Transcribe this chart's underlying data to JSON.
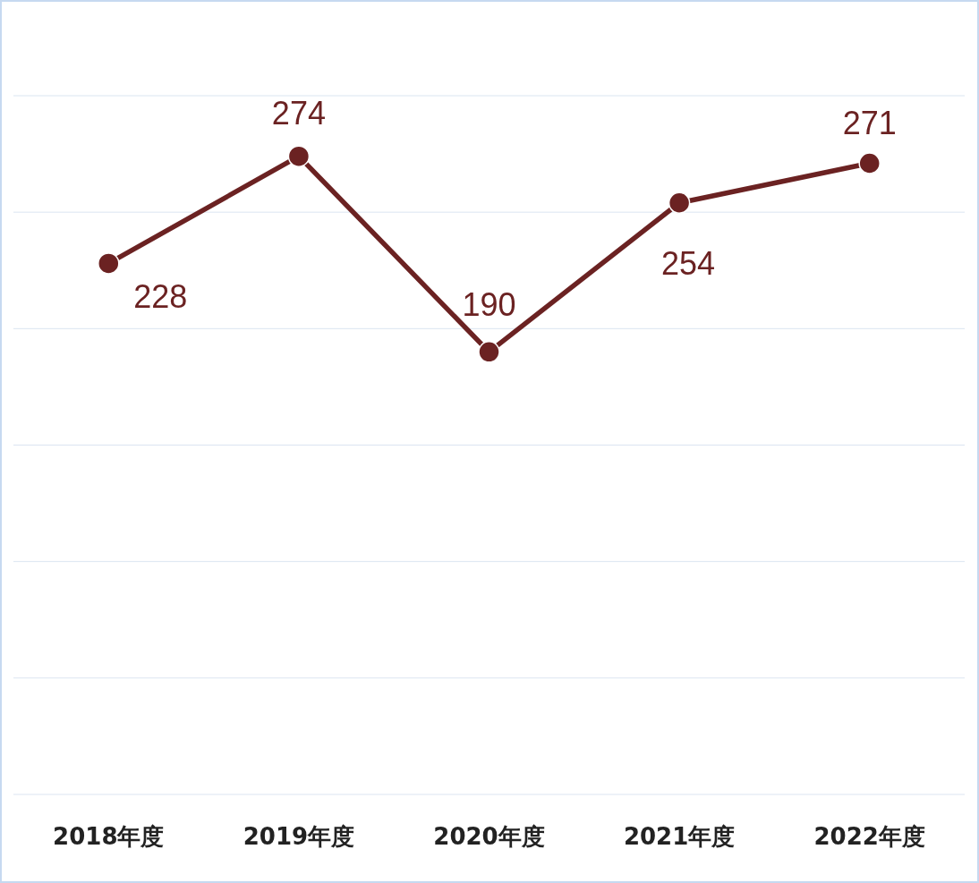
{
  "chart_data": {
    "type": "line",
    "categories": [
      "2018年度",
      "2019年度",
      "2020年度",
      "2021年度",
      "2022年度"
    ],
    "series": [
      {
        "color": "#6b2222",
        "values": [
          228,
          274,
          190,
          254,
          271
        ]
      }
    ],
    "ylim": [
      0,
      300
    ],
    "yticks": [
      {
        "value": 0,
        "label": null
      },
      {
        "value": 50,
        "label": null
      },
      {
        "value": 100,
        "label": null
      },
      {
        "value": 150,
        "label": null
      },
      {
        "value": 200,
        "label": null
      },
      {
        "value": 250,
        "label": null
      },
      {
        "value": 300,
        "label": null
      }
    ],
    "grid": "y",
    "tick_labels": "x",
    "marker": "circle",
    "data_labels": true
  }
}
